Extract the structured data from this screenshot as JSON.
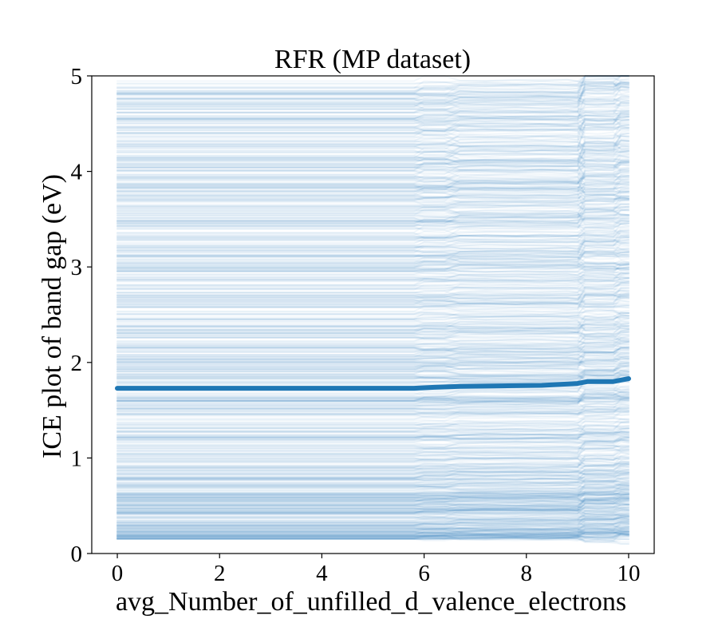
{
  "colors": {
    "ice_lines": "#1f77b4",
    "pd_line": "#1f77b4",
    "axes": "#000000",
    "background": "#ffffff"
  },
  "chart_data": {
    "type": "line",
    "title": "RFR (MP dataset)",
    "xlabel": "avg_Number_of_unfilled_d_valence_electrons",
    "ylabel": "ICE plot of band gap (eV)",
    "xlim": [
      -0.5,
      10.5
    ],
    "ylim": [
      0,
      5
    ],
    "xticks": [
      0,
      2,
      4,
      6,
      8,
      10
    ],
    "yticks": [
      0,
      1,
      2,
      3,
      4,
      5
    ],
    "grid": false,
    "legend": "none",
    "x": [
      0,
      1,
      2,
      3,
      4,
      5,
      5.8,
      6.2,
      6.7,
      7.5,
      8.3,
      9.0,
      9.2,
      9.7,
      10.0
    ],
    "average_curve": {
      "y": [
        1.73,
        1.73,
        1.73,
        1.73,
        1.73,
        1.73,
        1.73,
        1.74,
        1.75,
        1.755,
        1.76,
        1.78,
        1.8,
        1.8,
        1.83
      ]
    },
    "ice_curves": {
      "count_approx": 1000,
      "x_range": [
        0,
        10
      ],
      "start_y_range": [
        0.15,
        4.95
      ],
      "flat_until_x": 5.8,
      "steps_at_x": [
        6,
        6.7,
        9.1,
        9.7
      ]
    }
  }
}
